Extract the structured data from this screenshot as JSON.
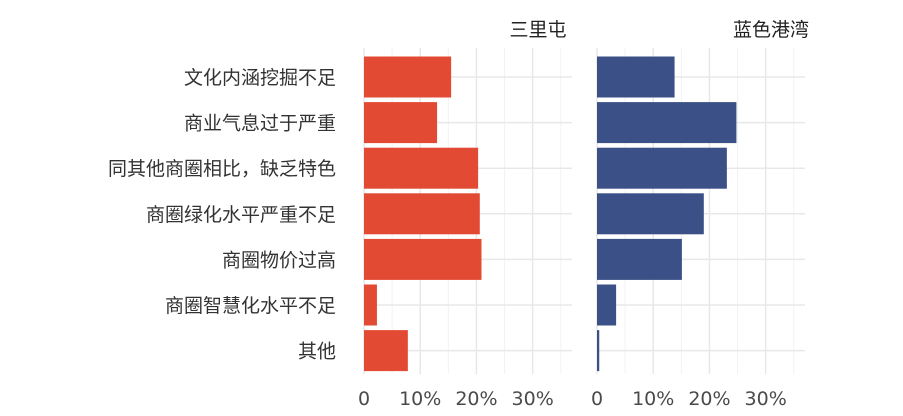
{
  "chart_data": {
    "type": "bar",
    "orientation": "horizontal",
    "categories": [
      "文化内涵挖掘不足",
      "商业气息过于严重",
      "同其他商圈相比，缺乏特色",
      "商圈绿化水平严重不足",
      "商圈物价过高",
      "商圈智慧化水平不足",
      "其他"
    ],
    "series": [
      {
        "name": "三里屯",
        "color": "#e34a33",
        "values": [
          15.5,
          13.0,
          20.3,
          20.6,
          20.9,
          2.3,
          7.8
        ]
      },
      {
        "name": "蓝色港湾",
        "color": "#3a5086",
        "values": [
          13.8,
          24.8,
          23.1,
          19.0,
          15.1,
          3.4,
          0.4
        ]
      }
    ],
    "xlim": [
      0,
      37
    ],
    "xticks": [
      0,
      10,
      20,
      30
    ],
    "xtick_labels": [
      "0",
      "10%",
      "20%",
      "30%"
    ],
    "grid": true,
    "legend": "none"
  }
}
